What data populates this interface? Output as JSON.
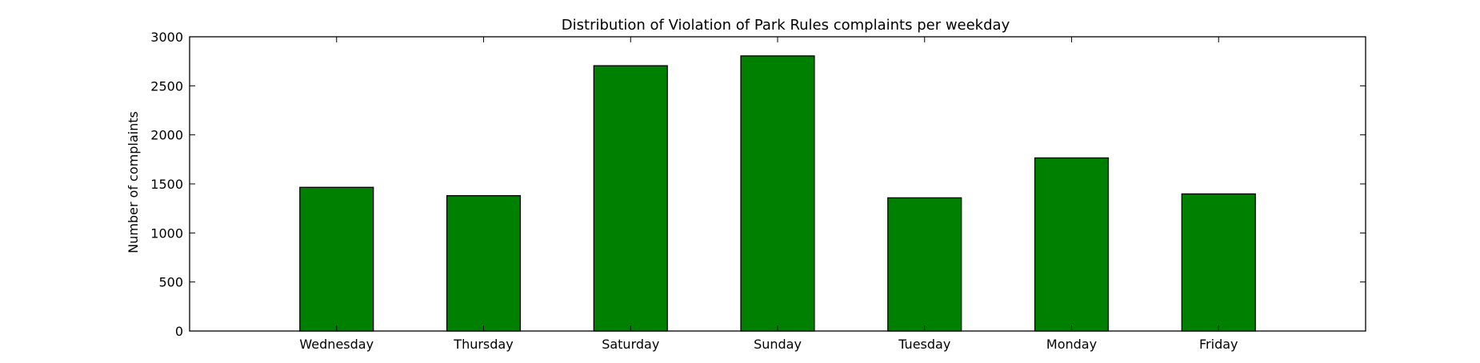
{
  "chart_data": {
    "type": "bar",
    "title": "Distribution of  Violation of Park Rules complaints per weekday",
    "xlabel": "",
    "ylabel": "Number of complaints",
    "categories": [
      "Wednesday",
      "Thursday",
      "Saturday",
      "Sunday",
      "Tuesday",
      "Monday",
      "Friday"
    ],
    "values": [
      1465,
      1380,
      2705,
      2805,
      1358,
      1765,
      1398
    ],
    "ylim": [
      0,
      3000
    ],
    "yticks": [
      0,
      500,
      1000,
      1500,
      2000,
      2500,
      3000
    ],
    "ytick_labels": [
      "0",
      "500",
      "1000",
      "1500",
      "2000",
      "2500",
      "3000"
    ],
    "grid": false,
    "legend": "none",
    "colors": {
      "bar_fill": "#008000",
      "bar_edge": "#000000",
      "axes": "#000000"
    }
  }
}
